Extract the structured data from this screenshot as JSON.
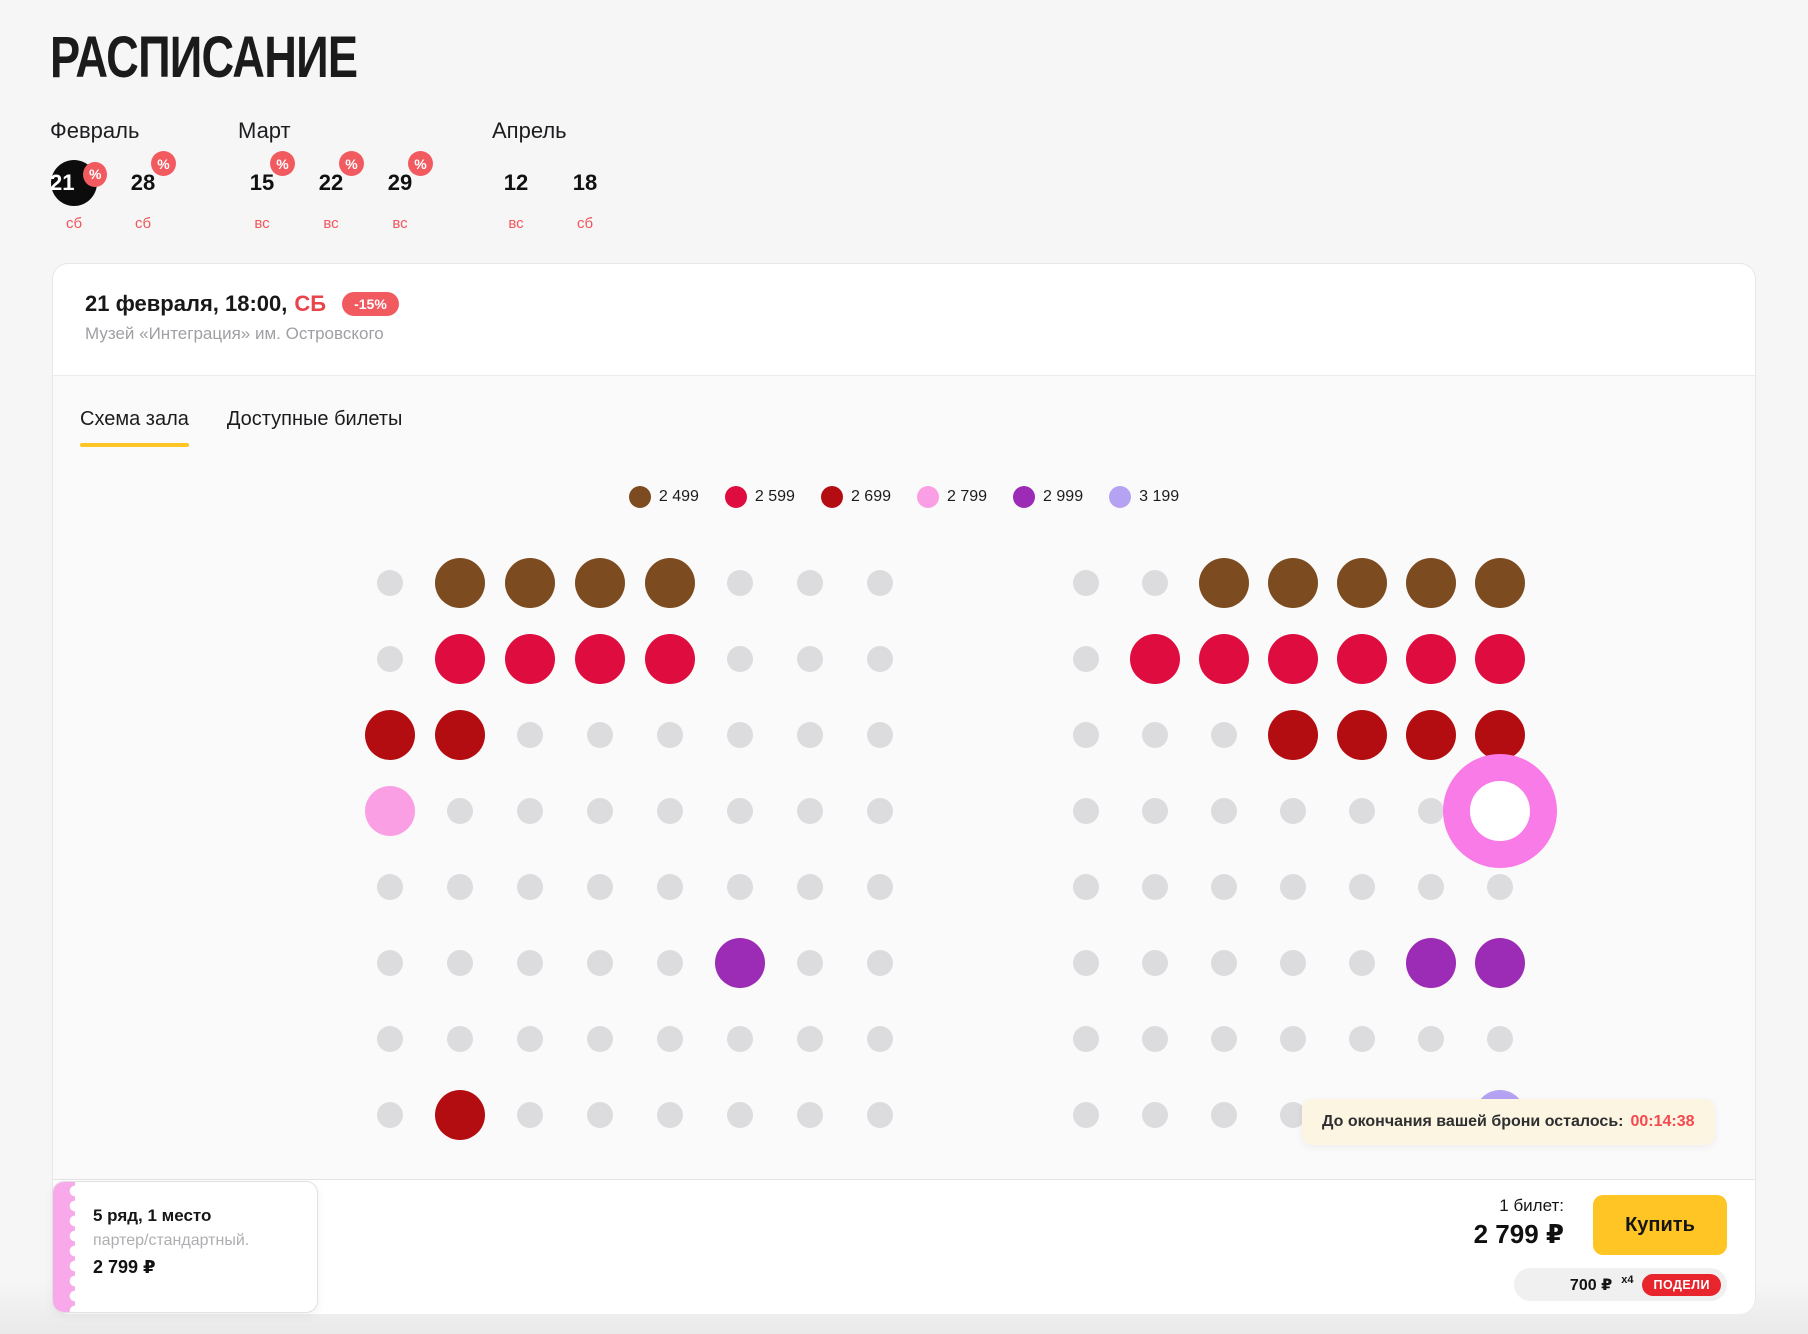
{
  "title": "РАСПИСАНИЕ",
  "schedule": {
    "months": [
      {
        "label": "Февраль",
        "dates": [
          {
            "day": "21",
            "dow": "сб",
            "discount": true,
            "selected": true
          },
          {
            "day": "28",
            "dow": "сб",
            "discount": true,
            "selected": false
          }
        ]
      },
      {
        "label": "Март",
        "dates": [
          {
            "day": "15",
            "dow": "вс",
            "discount": true,
            "selected": false
          },
          {
            "day": "22",
            "dow": "вс",
            "discount": true,
            "selected": false
          },
          {
            "day": "29",
            "dow": "вс",
            "discount": true,
            "selected": false
          }
        ]
      },
      {
        "label": "Апрель",
        "dates": [
          {
            "day": "12",
            "dow": "вс",
            "discount": false,
            "selected": false
          },
          {
            "day": "18",
            "dow": "сб",
            "discount": false,
            "selected": false
          }
        ]
      }
    ],
    "discount_symbol": "%"
  },
  "event": {
    "datetime": "21 февраля, 18:00,",
    "dow": "СБ",
    "discount_badge": "-15%",
    "venue": "Музей «Интеграция» им. Островского"
  },
  "tabs": [
    {
      "label": "Схема зала",
      "active": true
    },
    {
      "label": "Доступные билеты",
      "active": false
    }
  ],
  "legend": [
    {
      "price": "2 499",
      "code": "b",
      "color": "#7C4B20"
    },
    {
      "price": "2 599",
      "code": "r",
      "color": "#DE0C3F"
    },
    {
      "price": "2 699",
      "code": "d",
      "color": "#B40D11"
    },
    {
      "price": "2 799",
      "code": "p",
      "color": "#FA9FE4"
    },
    {
      "price": "2 999",
      "code": "v",
      "color": "#9C2BB5"
    },
    {
      "price": "3 199",
      "code": "l",
      "color": "#B5A2F2"
    }
  ],
  "seat_map": {
    "left_block_rows": [
      "ubbbbuuu",
      "urrrruuu",
      "dduuuuuu",
      "puuuuuuu",
      "uuuuuuuu",
      "uuuuuvuu",
      "uuuuuuuu",
      "uduuuuuu"
    ],
    "right_block_rows": [
      "uubbbbb",
      "urrrrrr",
      "uuudddd",
      "uuuuuuS",
      "uuuuuuu",
      "uuuuuvv",
      "uuuuuuu",
      "uuuuuul"
    ],
    "selected_code": "S",
    "unavailable_code": "u"
  },
  "countdown": {
    "label": "До окончания вашей брони осталось:",
    "time": "00:14:38"
  },
  "ticket_tooltip": {
    "seat": "5 ряд, 1 место",
    "category": "партер/стандартный.",
    "price": "2 799 ₽"
  },
  "footer": {
    "count_label": "1 билет:",
    "total": "2 799 ₽",
    "buy_label": "Купить",
    "installment": {
      "amount": "700 ₽",
      "multiplier": "х4",
      "brand": "ПОДЕЛИ"
    }
  },
  "colors": {
    "accent_yellow": "#FFC524",
    "badge_red": "#F15B60",
    "day_label_red": "#EF565B",
    "countdown_time_red": "#F5494F",
    "podeli_red": "#E8242C",
    "seat_unavailable": "#DCDCDE",
    "selected_ring_pink": "#F97BE8",
    "ticket_stub_pink": "#F8A9E9"
  }
}
